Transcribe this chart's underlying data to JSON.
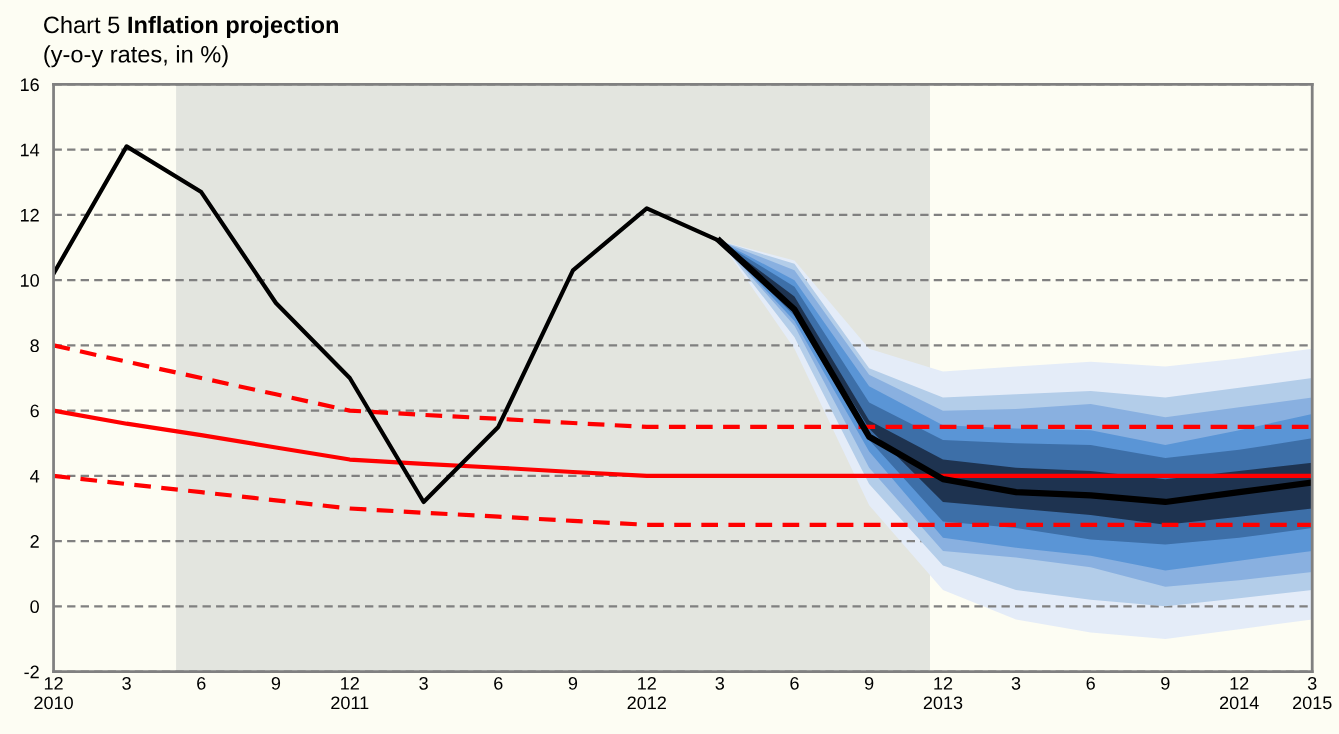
{
  "chart_data": {
    "type": "line",
    "title": "Chart 5 Inflation projection",
    "subtitle": "(y-o-y rates, in %)",
    "x": [
      "2010-12",
      "2011-03",
      "2011-06",
      "2011-09",
      "2011-12",
      "2012-03",
      "2012-06",
      "2012-09",
      "2012-12",
      "2013-03",
      "2013-06",
      "2013-09",
      "2013-12",
      "2014-03",
      "2014-06",
      "2014-09",
      "2014-12",
      "2015-03"
    ],
    "xlim": [
      "2010-12",
      "2015-03"
    ],
    "xticks": [
      {
        "value": "2010-12",
        "label": "12\n2010"
      },
      {
        "value": "2011-03",
        "label": "3"
      },
      {
        "value": "2011-06",
        "label": "6"
      },
      {
        "value": "2011-09",
        "label": "9"
      },
      {
        "value": "2011-12",
        "label": "12\n2011"
      },
      {
        "value": "2012-03",
        "label": "3"
      },
      {
        "value": "2012-06",
        "label": "6"
      },
      {
        "value": "2012-09",
        "label": "9"
      },
      {
        "value": "2012-12",
        "label": "12\n2012"
      },
      {
        "value": "2013-03",
        "label": "3"
      },
      {
        "value": "2013-06",
        "label": "6"
      },
      {
        "value": "2013-09",
        "label": "9"
      },
      {
        "value": "2013-12",
        "label": "12\n2013"
      },
      {
        "value": "2014-03",
        "label": "3"
      },
      {
        "value": "2014-06",
        "label": "6"
      },
      {
        "value": "2014-09",
        "label": "9"
      },
      {
        "value": "2014-12",
        "label": "12\n2014"
      },
      {
        "value": "2015-03",
        "label": "3\n2015"
      }
    ],
    "ylim": [
      -2,
      16
    ],
    "yticks": [
      -2,
      0,
      2,
      4,
      6,
      8,
      10,
      12,
      14,
      16
    ],
    "grid": "y",
    "bands": [
      {
        "axis": "x",
        "from": "2011-05-01",
        "to": "2013-11-15",
        "color": "#e3e5df"
      }
    ],
    "series": [
      {
        "type": "area",
        "color": "#e4ecf8",
        "values": [
          null,
          null,
          null,
          null,
          null,
          null,
          null,
          null,
          null,
          null,
          null,
          null,
          null,
          null,
          null,
          null,
          null,
          null
        ],
        "lower": [
          null,
          null,
          null,
          null,
          null,
          null,
          null,
          null,
          null,
          11.2,
          7.9,
          3.1,
          0.5,
          -0.4,
          -0.8,
          -1.0,
          -0.7,
          -0.4
        ],
        "upper": [
          null,
          null,
          null,
          null,
          null,
          null,
          null,
          null,
          null,
          11.2,
          10.6,
          7.9,
          7.2,
          7.35,
          7.5,
          7.35,
          7.6,
          7.9
        ]
      },
      {
        "type": "area",
        "color": "#b3cde9",
        "values": [
          null,
          null,
          null,
          null,
          null,
          null,
          null,
          null,
          null,
          null,
          null,
          null,
          null,
          null,
          null,
          null,
          null,
          null
        ],
        "lower": [
          null,
          null,
          null,
          null,
          null,
          null,
          null,
          null,
          null,
          11.2,
          8.25,
          3.75,
          1.25,
          0.5,
          0.2,
          0.0,
          0.25,
          0.5
        ],
        "upper": [
          null,
          null,
          null,
          null,
          null,
          null,
          null,
          null,
          null,
          11.2,
          10.5,
          7.3,
          6.4,
          6.5,
          6.6,
          6.4,
          6.7,
          7.0
        ]
      },
      {
        "type": "area",
        "color": "#89b0e0",
        "values": [
          null,
          null,
          null,
          null,
          null,
          null,
          null,
          null,
          null,
          null,
          null,
          null,
          null,
          null,
          null,
          null,
          null,
          null
        ],
        "lower": [
          null,
          null,
          null,
          null,
          null,
          null,
          null,
          null,
          null,
          11.2,
          8.6,
          4.25,
          1.7,
          1.5,
          1.2,
          0.6,
          0.8,
          1.05
        ],
        "upper": [
          null,
          null,
          null,
          null,
          null,
          null,
          null,
          null,
          null,
          11.2,
          10.3,
          7.1,
          6.0,
          6.05,
          6.2,
          5.8,
          6.1,
          6.4
        ]
      },
      {
        "type": "area",
        "color": "#5a95d6",
        "values": [
          null,
          null,
          null,
          null,
          null,
          null,
          null,
          null,
          null,
          null,
          null,
          null,
          null,
          null,
          null,
          null,
          null,
          null
        ],
        "lower": [
          null,
          null,
          null,
          null,
          null,
          null,
          null,
          null,
          null,
          11.2,
          8.75,
          4.75,
          2.1,
          1.8,
          1.55,
          1.1,
          1.4,
          1.7
        ],
        "upper": [
          null,
          null,
          null,
          null,
          null,
          null,
          null,
          null,
          null,
          11.2,
          10.0,
          6.75,
          5.55,
          5.45,
          5.4,
          4.95,
          5.4,
          5.9
        ]
      },
      {
        "type": "area",
        "color": "#3d6fa8",
        "values": [
          null,
          null,
          null,
          null,
          null,
          null,
          null,
          null,
          null,
          null,
          null,
          null,
          null,
          null,
          null,
          null,
          null,
          null
        ],
        "lower": [
          null,
          null,
          null,
          null,
          null,
          null,
          null,
          null,
          null,
          11.2,
          8.9,
          5.1,
          2.6,
          2.4,
          2.05,
          1.9,
          2.1,
          2.4
        ],
        "upper": [
          null,
          null,
          null,
          null,
          null,
          null,
          null,
          null,
          null,
          11.2,
          9.8,
          6.25,
          5.1,
          5.0,
          4.95,
          4.55,
          4.8,
          5.15
        ]
      },
      {
        "type": "area",
        "color": "#1e3350",
        "values": [
          null,
          null,
          null,
          null,
          null,
          null,
          null,
          null,
          null,
          null,
          null,
          null,
          null,
          null,
          null,
          null,
          null,
          null
        ],
        "lower": [
          null,
          null,
          null,
          null,
          null,
          null,
          null,
          null,
          null,
          11.2,
          9.1,
          5.45,
          3.2,
          3.0,
          2.8,
          2.5,
          2.75,
          3.0
        ],
        "upper": [
          null,
          null,
          null,
          null,
          null,
          null,
          null,
          null,
          null,
          11.2,
          9.5,
          5.7,
          4.5,
          4.25,
          4.15,
          3.9,
          4.15,
          4.4
        ]
      },
      {
        "color": "#ff0000",
        "line_style": "dashed",
        "values": [
          8,
          7.5,
          7,
          6.5,
          6,
          5.87,
          5.75,
          5.62,
          5.5,
          5.5,
          5.5,
          5.5,
          5.5,
          5.5,
          5.5,
          5.5,
          5.5,
          5.5
        ]
      },
      {
        "color": "#ff0000",
        "line_style": "solid",
        "values": [
          6,
          5.6,
          5.25,
          4.87,
          4.5,
          4.37,
          4.25,
          4.12,
          4,
          4,
          4,
          4,
          4,
          4,
          4,
          4,
          4,
          4
        ]
      },
      {
        "color": "#ff0000",
        "line_style": "dashed",
        "values": [
          4,
          3.75,
          3.5,
          3.25,
          3,
          2.87,
          2.75,
          2.62,
          2.5,
          2.5,
          2.5,
          2.5,
          2.5,
          2.5,
          2.5,
          2.5,
          2.5,
          2.5
        ]
      },
      {
        "color": "#000000",
        "line_style": "solid",
        "values": [
          10.2,
          14.1,
          12.7,
          9.3,
          7.0,
          3.2,
          5.5,
          10.3,
          12.2,
          11.2,
          null,
          null,
          null,
          null,
          null,
          null,
          null,
          null
        ]
      },
      {
        "color": "#000000",
        "line_style": "solid",
        "values": [
          null,
          null,
          null,
          null,
          null,
          null,
          null,
          null,
          null,
          11.2,
          9.1,
          5.2,
          3.9,
          3.5,
          3.4,
          3.2,
          3.5,
          3.8
        ]
      }
    ]
  }
}
